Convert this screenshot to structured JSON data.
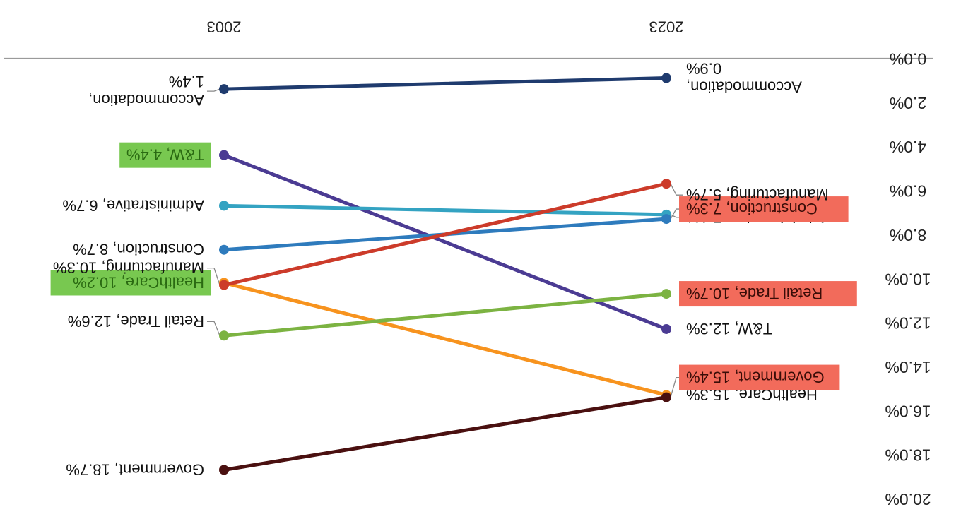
{
  "chart_data": {
    "type": "line",
    "title": "",
    "xlabel": "",
    "ylabel": "",
    "x": [
      "2003",
      "2023"
    ],
    "y_axis": {
      "ticks": [
        "0.0%",
        "2.0%",
        "4.0%",
        "6.0%",
        "8.0%",
        "10.0%",
        "12.0%",
        "14.0%",
        "16.0%",
        "18.0%",
        "20.0%"
      ],
      "min": 0,
      "max": 20,
      "inverted": true
    },
    "grid": false,
    "orientation": "rotated-180",
    "series": [
      {
        "name": "Accommodation",
        "values": [
          1.4,
          0.9
        ],
        "color": "#1f3b6e",
        "labels": [
          "Accommodation,|1.4%",
          "Accommodation,|0.9%"
        ],
        "highlight": [
          "",
          ""
        ]
      },
      {
        "name": "T&W",
        "values": [
          4.4,
          12.3
        ],
        "color": "#4b3b93",
        "labels": [
          "T&W, 4.4%",
          "T&W, 12.3%"
        ],
        "highlight": [
          "#78c850",
          ""
        ]
      },
      {
        "name": "Administrative",
        "values": [
          6.7,
          7.1
        ],
        "color": "#34a3c2",
        "labels": [
          "Administrative, 6.7%",
          "Administrative, 7.1%"
        ],
        "highlight": [
          "",
          ""
        ]
      },
      {
        "name": "Construction",
        "values": [
          8.7,
          7.3
        ],
        "color": "#2e7bbd",
        "labels": [
          "Construction, 8.7%",
          "Construction, 7.3%"
        ],
        "highlight": [
          "",
          "#f26b5b"
        ]
      },
      {
        "name": "HealthCare",
        "values": [
          10.2,
          15.3
        ],
        "color": "#f7931e",
        "labels": [
          "HealthCare, 10.2%",
          "HealthCare, 15.3%"
        ],
        "highlight": [
          "#78c850",
          ""
        ]
      },
      {
        "name": "Manufacturing",
        "values": [
          10.3,
          5.7
        ],
        "color": "#cc3b2a",
        "labels": [
          "Manufacturing, 10.3%",
          "Manufacturing, 5.7%"
        ],
        "highlight": [
          "",
          ""
        ]
      },
      {
        "name": "Retail Trade",
        "values": [
          12.6,
          10.7
        ],
        "color": "#7cb342",
        "labels": [
          "Retail Trade, 12.6%",
          "Retail Trade, 10.7%"
        ],
        "highlight": [
          "",
          "#f26b5b"
        ]
      },
      {
        "name": "Government",
        "values": [
          18.7,
          15.4
        ],
        "color": "#4a1010",
        "labels": [
          "Government, 18.7%",
          "Government, 15.4%"
        ],
        "highlight": [
          "",
          "#f26b5b"
        ]
      }
    ]
  }
}
